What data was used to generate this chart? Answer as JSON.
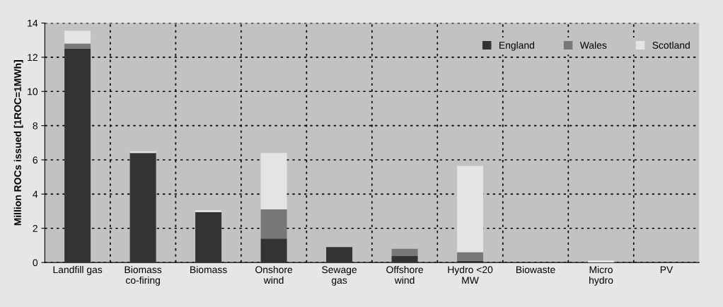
{
  "chart_data": {
    "type": "bar",
    "stacked": true,
    "ylabel": "Million ROCs issued [1ROC=1MWh]",
    "categories": [
      "Landfill gas",
      "Biomass\nco-firing",
      "Biomass",
      "Onshore\nwind",
      "Sewage\ngas",
      "Offshore\nwind",
      "Hydro <20\nMW",
      "Biowaste",
      "Micro\nhydro",
      "PV"
    ],
    "series": [
      {
        "name": "England",
        "color": "#333333",
        "values": [
          12.5,
          6.4,
          2.95,
          1.4,
          0.9,
          0.37,
          0.1,
          null,
          0,
          0
        ]
      },
      {
        "name": "Wales",
        "color": "#787878",
        "values": [
          0.3,
          0,
          0,
          1.7,
          0,
          0.43,
          0.5,
          0,
          0,
          0
        ]
      },
      {
        "name": "Scotland",
        "color": "#e4e4e4",
        "values": [
          0.75,
          0.1,
          0.1,
          3.3,
          0,
          0,
          5.05,
          0,
          0.12,
          0
        ]
      }
    ],
    "ylim": [
      0,
      14
    ],
    "yticks": [
      0,
      2,
      4,
      6,
      8,
      10,
      12,
      14
    ],
    "grid": true,
    "legend": "top right"
  }
}
